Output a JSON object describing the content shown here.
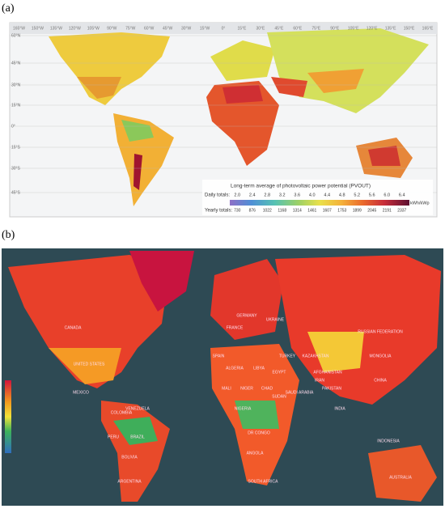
{
  "panels": [
    {
      "label": "(a)",
      "longitudes": [
        "165°W",
        "150°W",
        "135°W",
        "120°W",
        "105°W",
        "90°W",
        "75°W",
        "60°W",
        "45°W",
        "30°W",
        "15°W",
        "0°",
        "15°E",
        "30°E",
        "45°E",
        "60°E",
        "75°E",
        "90°E",
        "105°E",
        "120°E",
        "135°E",
        "150°E",
        "165°E"
      ],
      "latitudes": [
        "60°N",
        "45°N",
        "30°N",
        "15°N",
        "0°",
        "15°S",
        "30°S",
        "45°S"
      ],
      "legend": {
        "title": "Long-term average of photovoltaic power potential (PVOUT)",
        "daily_label": "Daily totals:",
        "daily": [
          "2.0",
          "2.4",
          "2.8",
          "3.2",
          "3.6",
          "4.0",
          "4.4",
          "4.8",
          "5.2",
          "5.6",
          "6.0",
          "6.4"
        ],
        "unit": "kWh/kWp",
        "yearly_label": "Yearly totals:",
        "yearly": [
          "730",
          "876",
          "1022",
          "1168",
          "1314",
          "1461",
          "1607",
          "1753",
          "1899",
          "2045",
          "2191",
          "2337"
        ]
      }
    },
    {
      "label": "(b)",
      "countries": [
        "CANADA",
        "UNITED STATES",
        "MEXICO",
        "BRAZIL",
        "ARGENTINA",
        "RUSSIAN FEDERATION",
        "KAZAKHSTAN",
        "CHINA",
        "INDIA",
        "ALGERIA",
        "LIBYA",
        "EGYPT",
        "SUDAN",
        "NIGERIA",
        "DR CONGO",
        "ANGOLA",
        "SOUTH AFRICA",
        "SAUDI ARABIA",
        "IRAN",
        "MONGOLIA",
        "INDONESIA",
        "AUSTRALIA",
        "SPAIN",
        "FRANCE",
        "GERMANY",
        "UKRAINE",
        "TURKEY",
        "MALI",
        "NIGER",
        "CHAD",
        "PERU",
        "BOLIVIA",
        "COLOMBIA",
        "VENEZUELA",
        "PAKISTAN",
        "AFGHANISTAN"
      ]
    }
  ]
}
